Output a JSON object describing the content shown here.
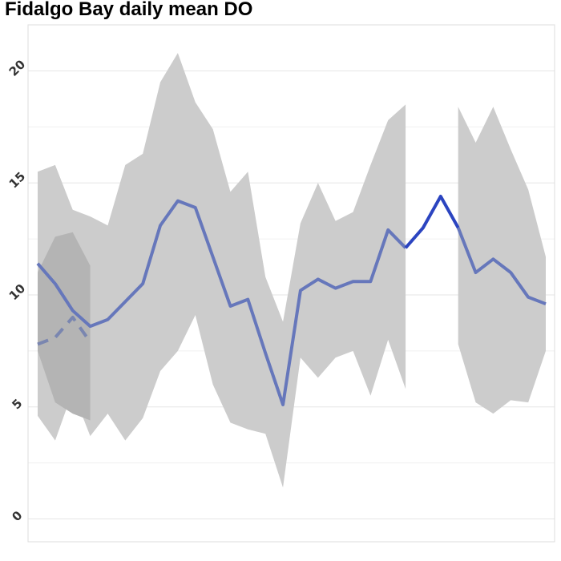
{
  "chart_data": {
    "type": "line",
    "title": "Fidalgo Bay daily mean DO",
    "xlabel": "",
    "ylabel": "",
    "ylim": [
      0,
      22
    ],
    "yticks": [
      0,
      5,
      10,
      15,
      20
    ],
    "grid": true,
    "legend": "none",
    "x": [
      1,
      2,
      3,
      4,
      5,
      6,
      7,
      8,
      9,
      10,
      11,
      12,
      13,
      14,
      15,
      16,
      17,
      18,
      19,
      20,
      21,
      22,
      23,
      24,
      25,
      26,
      27,
      28,
      29,
      30
    ],
    "series": [
      {
        "role": "mean",
        "color": "#6677bb",
        "values": [
          11.4,
          10.5,
          9.3,
          8.6,
          8.9,
          9.7,
          10.5,
          13.1,
          14.2,
          13.9,
          11.7,
          9.5,
          9.8,
          7.4,
          5.1,
          10.2,
          10.7,
          10.3,
          10.6,
          10.6,
          12.9,
          12.1,
          null,
          null,
          13.0,
          11.0,
          11.6,
          11.0,
          9.9,
          9.6
        ]
      },
      {
        "role": "current",
        "color": "#2b44c0",
        "values": [
          null,
          null,
          null,
          null,
          null,
          null,
          null,
          null,
          null,
          null,
          null,
          null,
          null,
          null,
          null,
          null,
          null,
          null,
          null,
          null,
          null,
          12.1,
          13.0,
          14.4,
          13.0,
          null,
          null,
          null,
          null,
          null
        ]
      },
      {
        "role": "dashed",
        "color": "#7a86b0",
        "values": [
          7.8,
          8.1,
          9.0,
          7.9,
          null,
          null,
          null,
          null,
          null,
          null,
          null,
          null,
          null,
          null,
          null,
          null,
          null,
          null,
          null,
          null,
          null,
          null,
          null,
          null,
          null,
          null,
          null,
          null,
          null,
          null
        ]
      }
    ],
    "bands": [
      {
        "role": "range",
        "color": "#cccccc",
        "segments": [
          {
            "x": [
              1,
              2,
              3,
              4,
              5,
              6,
              7,
              8,
              9,
              10,
              11,
              12,
              13,
              14,
              15,
              16,
              17,
              18,
              19,
              20,
              21,
              22
            ],
            "upper": [
              15.5,
              15.8,
              13.8,
              13.5,
              13.1,
              15.8,
              16.3,
              19.5,
              20.8,
              18.6,
              17.4,
              14.6,
              15.5,
              10.8,
              8.8,
              13.2,
              15.0,
              13.3,
              13.7,
              15.8,
              17.8,
              18.5
            ],
            "lower": [
              4.6,
              3.5,
              5.7,
              3.7,
              4.7,
              3.5,
              4.5,
              6.6,
              7.5,
              9.1,
              6.0,
              4.3,
              4.0,
              3.8,
              1.4,
              7.2,
              6.3,
              7.2,
              7.5,
              5.5,
              8.0,
              5.8
            ]
          },
          {
            "x": [
              25,
              26,
              27,
              28,
              29,
              30
            ],
            "upper": [
              18.4,
              16.8,
              18.4,
              16.5,
              14.7,
              11.7
            ],
            "lower": [
              7.8,
              5.2,
              4.7,
              5.3,
              5.2,
              7.5
            ]
          }
        ]
      },
      {
        "role": "overlap",
        "color": "#b4b4b4",
        "segments": [
          {
            "x": [
              1,
              2,
              3,
              4
            ],
            "upper": [
              11.0,
              12.6,
              12.8,
              11.3
            ],
            "lower": [
              7.5,
              5.2,
              4.7,
              4.4
            ]
          }
        ]
      }
    ]
  }
}
